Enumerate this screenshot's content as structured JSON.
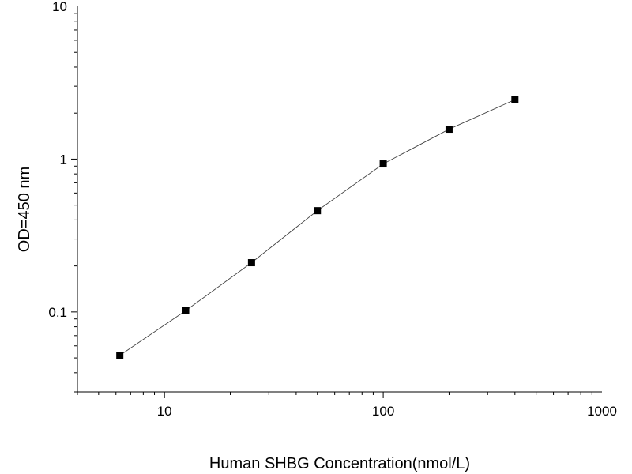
{
  "chart_data": {
    "type": "scatter",
    "title": "",
    "xlabel": "Human SHBG Concentration(nmol/L)",
    "ylabel": "OD=450 nm",
    "x_scale": "log",
    "y_scale": "log",
    "xlim": [
      4,
      1000
    ],
    "ylim": [
      0.03,
      10
    ],
    "grid": false,
    "legend": "none",
    "x_ticks": [
      {
        "value": 10,
        "label": "10"
      },
      {
        "value": 100,
        "label": "100"
      },
      {
        "value": 1000,
        "label": "1000"
      }
    ],
    "y_ticks": [
      {
        "value": 0.1,
        "label": "0.1"
      },
      {
        "value": 1,
        "label": "1"
      },
      {
        "value": 10,
        "label": "10"
      }
    ],
    "series": [
      {
        "x": [
          6.25,
          12.5,
          25,
          50,
          100,
          200,
          400
        ],
        "y": [
          0.052,
          0.102,
          0.21,
          0.46,
          0.93,
          1.57,
          2.45
        ],
        "marker": "square",
        "color": "#000000",
        "connected": true
      }
    ]
  }
}
